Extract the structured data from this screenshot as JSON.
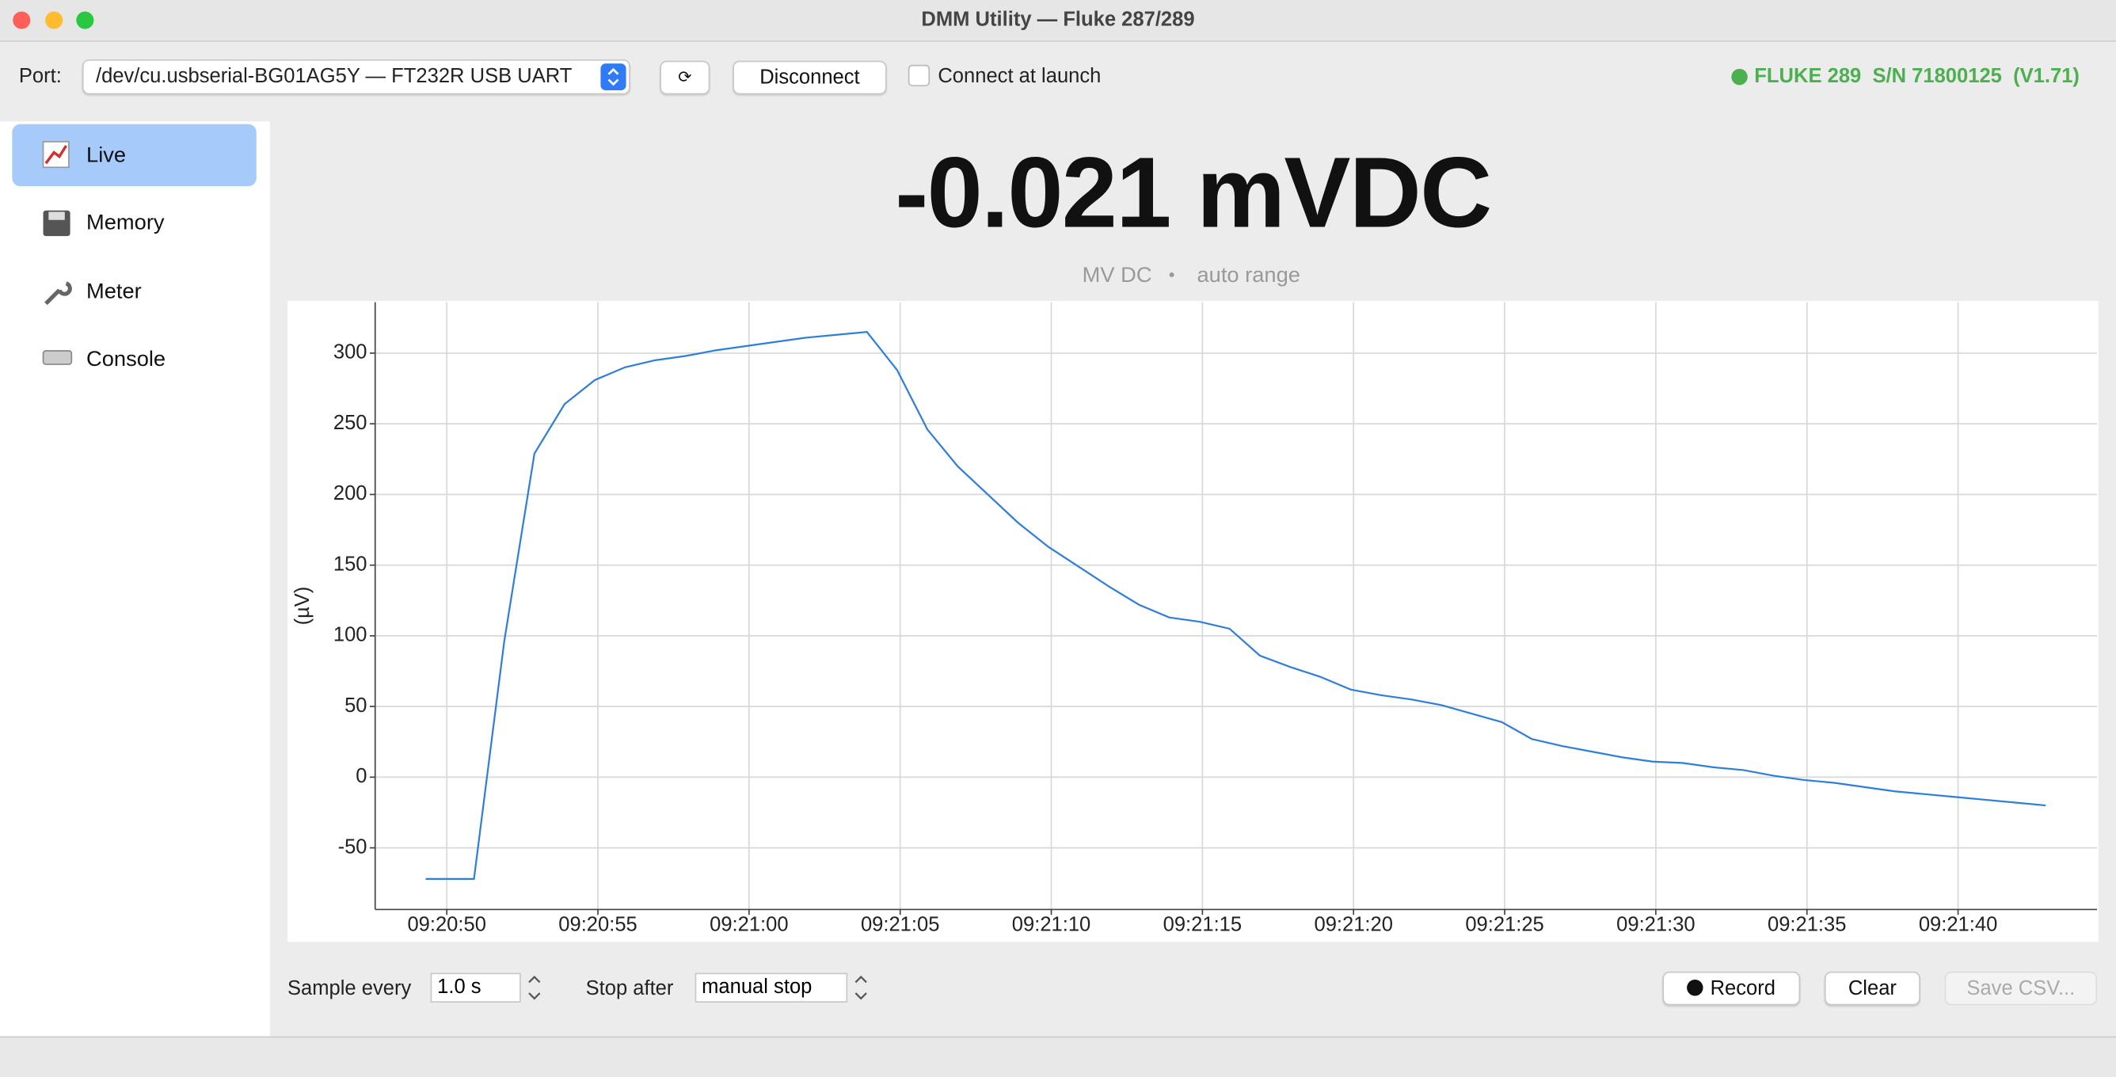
{
  "window": {
    "title": "DMM Utility — Fluke 287/289"
  },
  "toolbar": {
    "port_label": "Port:",
    "port": "/dev/cu.usbserial-BG01AG5Y — FT232R USB UART",
    "refresh": "⟳",
    "disconnect": "Disconnect",
    "connect_at_launch": "Connect at launch",
    "status": "FLUKE 289  S/N 71800125  (V1.71)"
  },
  "sidebar": {
    "items": [
      "Live",
      "Memory",
      "Meter",
      "Console"
    ]
  },
  "reading": {
    "value": "-0.021 mVDC",
    "mode": "MV DC",
    "separator": "•",
    "range": "auto range"
  },
  "controls": {
    "sample_label": "Sample every",
    "sample": "1.0 s",
    "stop_label": "Stop after",
    "stop": "manual stop",
    "record": "Record",
    "clear": "Clear",
    "save": "Save CSV..."
  },
  "chart_data": {
    "type": "line",
    "ylabel": "(µV)",
    "color": "#2f7ed8",
    "grid": true,
    "x": [
      49.3,
      50.9,
      51.9,
      52.9,
      53.9,
      54.9,
      55.9,
      56.9,
      57.9,
      58.9,
      59.9,
      60.9,
      61.9,
      62.9,
      63.9,
      64.9,
      65.9,
      66.9,
      67.9,
      68.9,
      69.9,
      70.9,
      71.9,
      72.9,
      73.9,
      74.9,
      75.9,
      76.9,
      77.9,
      78.9,
      79.9,
      80.9,
      81.9,
      82.9,
      83.9,
      84.9,
      85.9,
      86.9,
      87.9,
      88.9,
      89.9,
      90.9,
      91.9,
      92.9,
      93.9,
      94.9,
      95.9,
      96.9,
      97.9,
      98.9,
      99.9,
      100.9,
      101.9,
      102.9
    ],
    "values": [
      -72,
      -72,
      96,
      229,
      264,
      281,
      290,
      295,
      298,
      302,
      305,
      308,
      311,
      313,
      315,
      288,
      246,
      220,
      200,
      180,
      163,
      149,
      135,
      122,
      113,
      110,
      105,
      86,
      78,
      71,
      62,
      58,
      55,
      51,
      45,
      39,
      27,
      22,
      18,
      14,
      11,
      10,
      7,
      5,
      1,
      -2,
      -4,
      -7,
      -10,
      -12,
      -14,
      -16,
      -18,
      -20
    ],
    "xlim": [
      47.63,
      104.6
    ],
    "xticks": [
      {
        "value": 50,
        "label": "09:20:50"
      },
      {
        "value": 55,
        "label": "09:20:55"
      },
      {
        "value": 60,
        "label": "09:21:00"
      },
      {
        "value": 65,
        "label": "09:21:05"
      },
      {
        "value": 70,
        "label": "09:21:10"
      },
      {
        "value": 75,
        "label": "09:21:15"
      },
      {
        "value": 80,
        "label": "09:21:20"
      },
      {
        "value": 85,
        "label": "09:21:25"
      },
      {
        "value": 90,
        "label": "09:21:30"
      },
      {
        "value": 95,
        "label": "09:21:35"
      },
      {
        "value": 100,
        "label": "09:21:40"
      }
    ],
    "ylim": [
      -93.6,
      336
    ],
    "yticks": [
      -50,
      0,
      50,
      100,
      150,
      200,
      250,
      300
    ]
  }
}
